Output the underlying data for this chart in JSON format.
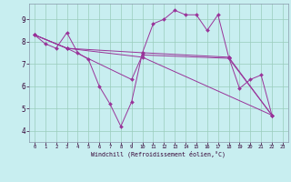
{
  "xlabel": "Windchill (Refroidissement éolien,°C)",
  "bg_color": "#c8eef0",
  "line_color": "#993399",
  "grid_color": "#99ccbb",
  "xlim": [
    -0.5,
    23.5
  ],
  "ylim": [
    3.5,
    9.7
  ],
  "xticks": [
    0,
    1,
    2,
    3,
    4,
    5,
    6,
    7,
    8,
    9,
    10,
    11,
    12,
    13,
    14,
    15,
    16,
    17,
    18,
    19,
    20,
    21,
    22,
    23
  ],
  "yticks": [
    4,
    5,
    6,
    7,
    8,
    9
  ],
  "lines": [
    {
      "x": [
        0,
        1,
        2,
        3,
        4,
        5,
        6,
        7,
        8,
        9,
        10,
        11,
        12,
        13,
        14,
        15,
        16,
        17,
        18,
        19,
        20,
        21,
        22
      ],
      "y": [
        8.3,
        7.9,
        7.7,
        8.4,
        7.5,
        7.2,
        6.0,
        5.2,
        4.2,
        5.3,
        7.5,
        8.8,
        9.0,
        9.4,
        9.2,
        9.2,
        8.5,
        9.2,
        7.3,
        5.9,
        6.3,
        6.5,
        4.7
      ]
    },
    {
      "x": [
        0,
        3,
        10,
        18,
        22
      ],
      "y": [
        8.3,
        7.7,
        7.5,
        7.3,
        4.7
      ]
    },
    {
      "x": [
        0,
        3,
        9,
        10,
        18,
        22
      ],
      "y": [
        8.3,
        7.7,
        6.3,
        7.4,
        7.25,
        4.7
      ]
    },
    {
      "x": [
        0,
        3,
        10,
        22
      ],
      "y": [
        8.3,
        7.7,
        7.3,
        4.7
      ]
    }
  ]
}
